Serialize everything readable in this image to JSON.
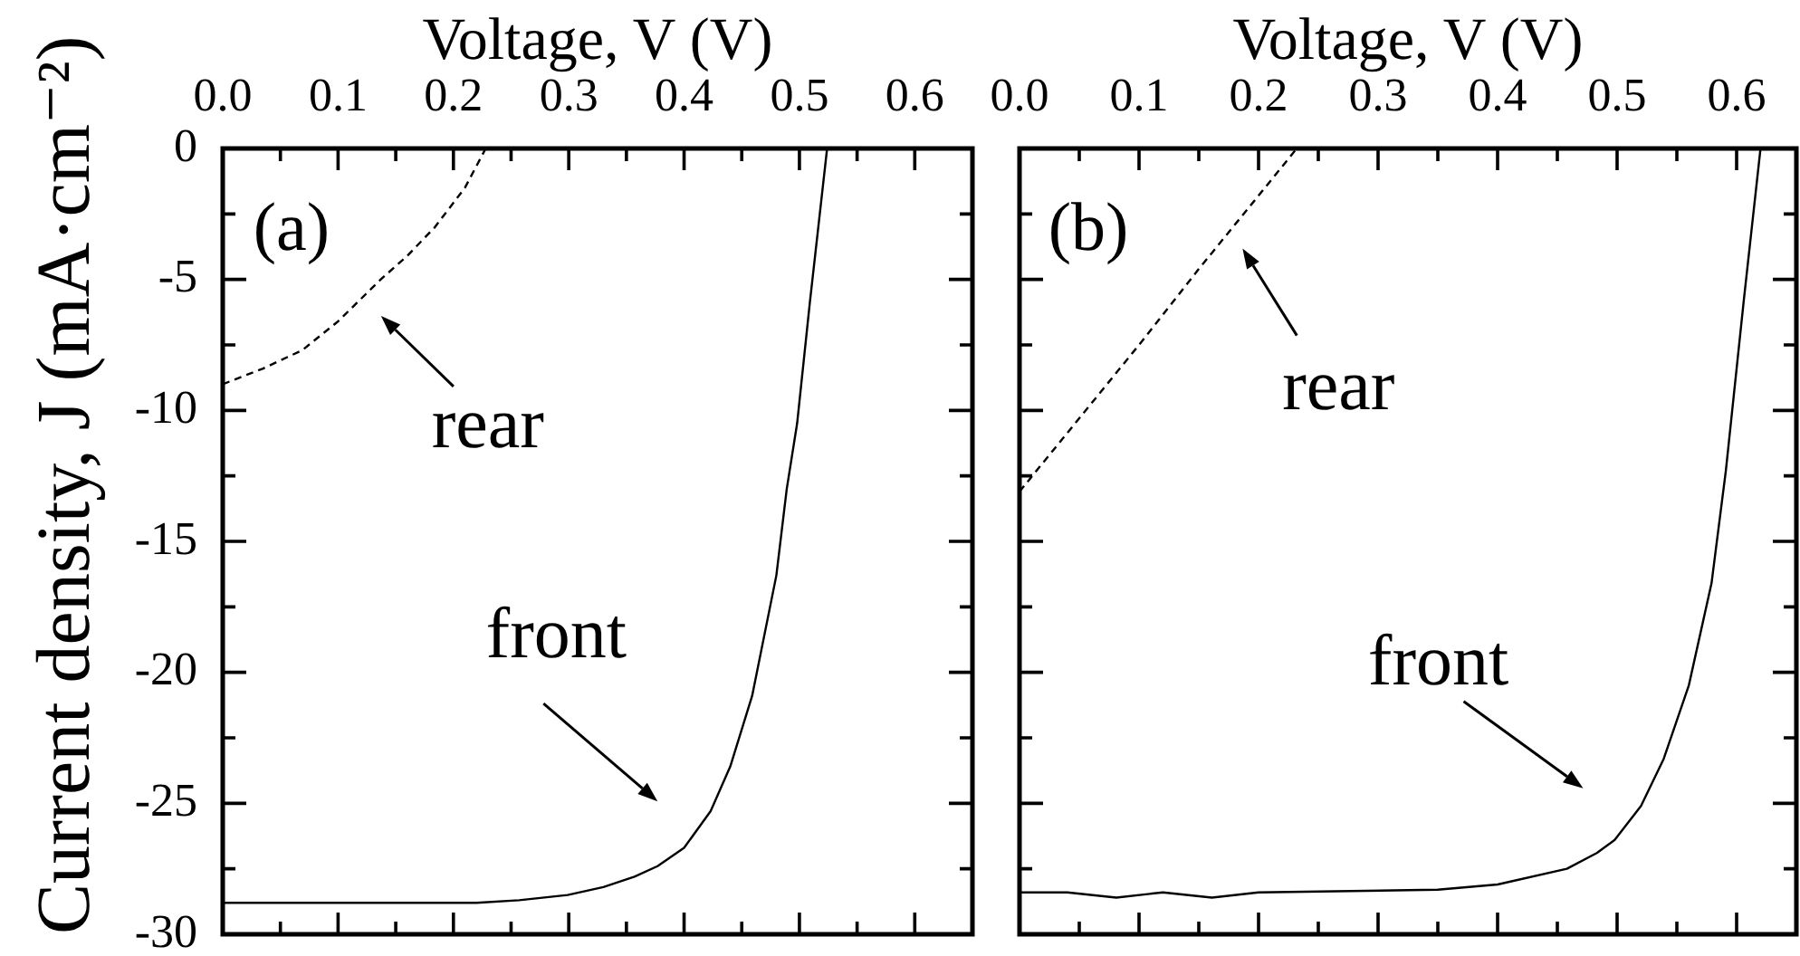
{
  "chart_data": [
    {
      "type": "line",
      "xlabel": "Voltage, V (V)",
      "ylabel": "Current density, J (mA·cm⁻²)",
      "annotations": [
        "(a)",
        {
          "text": "rear",
          "x": 0.12,
          "y": -5.7
        },
        {
          "text": "front",
          "x": 0.41,
          "y": -26.1
        }
      ],
      "xlim": [
        0,
        0.65
      ],
      "xticks": [
        {
          "value": 0,
          "label": "0.0"
        },
        {
          "value": 0.05,
          "label": null
        },
        {
          "value": 0.1,
          "label": "0.1"
        },
        {
          "value": 0.15,
          "label": null
        },
        {
          "value": 0.2,
          "label": "0.2"
        },
        {
          "value": 0.25,
          "label": null
        },
        {
          "value": 0.3,
          "label": "0.3"
        },
        {
          "value": 0.35,
          "label": null
        },
        {
          "value": 0.4,
          "label": "0.4"
        },
        {
          "value": 0.45,
          "label": null
        },
        {
          "value": 0.5,
          "label": "0.5"
        },
        {
          "value": 0.55,
          "label": null
        },
        {
          "value": 0.6,
          "label": "0.6"
        }
      ],
      "ylim": [
        -30,
        0
      ],
      "yticks": [
        0,
        {
          "value": -2.5,
          "label": null
        },
        -5,
        {
          "value": -7.5,
          "label": null
        },
        -10,
        {
          "value": -12.5,
          "label": null
        },
        -15,
        {
          "value": -17.5,
          "label": null
        },
        -20,
        {
          "value": -22.5,
          "label": null
        },
        -25,
        {
          "value": -27.5,
          "label": null
        },
        -30
      ],
      "series": [
        {
          "color": "#000000",
          "x": [
            0,
            0.1,
            0.2,
            0.22,
            0.257,
            0.299,
            0.33,
            0.357,
            0.377,
            0.4,
            0.423,
            0.44,
            0.459,
            0.48,
            0.489,
            0.498,
            0.509,
            0.524
          ],
          "values": [
            -28.8,
            -28.8,
            -28.8,
            -28.8,
            -28.7,
            -28.5,
            -28.2,
            -27.8,
            -27.4,
            -26.7,
            -25.3,
            -23.6,
            -20.9,
            -16.3,
            -13.0,
            -10.5,
            -5.9,
            0
          ]
        },
        {
          "color": "#000000",
          "line_style": "dashed",
          "x": [
            0,
            0.035,
            0.069,
            0.1,
            0.137,
            0.16,
            0.184,
            0.21,
            0.228
          ],
          "values": [
            -9.0,
            -8.4,
            -7.7,
            -6.6,
            -5.0,
            -4.1,
            -3.0,
            -1.5,
            0
          ]
        }
      ]
    },
    {
      "type": "line",
      "xlabel": "Voltage, V (V)",
      "tick_labels": "x",
      "annotations": [
        "(b)",
        {
          "text": "rear",
          "x": 0.176,
          "y": -3.2
        },
        {
          "text": "front",
          "x": 0.511,
          "y": -25.6
        }
      ],
      "xlim": [
        0,
        0.65
      ],
      "xticks": [
        {
          "value": 0,
          "label": "0.0"
        },
        {
          "value": 0.05,
          "label": null
        },
        {
          "value": 0.1,
          "label": "0.1"
        },
        {
          "value": 0.15,
          "label": null
        },
        {
          "value": 0.2,
          "label": "0.2"
        },
        {
          "value": 0.25,
          "label": null
        },
        {
          "value": 0.3,
          "label": "0.3"
        },
        {
          "value": 0.35,
          "label": null
        },
        {
          "value": 0.4,
          "label": "0.4"
        },
        {
          "value": 0.45,
          "label": null
        },
        {
          "value": 0.5,
          "label": "0.5"
        },
        {
          "value": 0.55,
          "label": null
        },
        {
          "value": 0.6,
          "label": "0.6"
        }
      ],
      "ylim": [
        -30,
        0
      ],
      "yticks": [
        0,
        {
          "value": -2.5,
          "label": null
        },
        -5,
        {
          "value": -7.5,
          "label": null
        },
        -10,
        {
          "value": -12.5,
          "label": null
        },
        -15,
        {
          "value": -17.5,
          "label": null
        },
        -20,
        {
          "value": -22.5,
          "label": null
        },
        -25,
        {
          "value": -27.5,
          "label": null
        },
        -30
      ],
      "series": [
        {
          "color": "#000000",
          "x": [
            0,
            0.04,
            0.081,
            0.12,
            0.161,
            0.2,
            0.35,
            0.4,
            0.458,
            0.483,
            0.498,
            0.52,
            0.539,
            0.56,
            0.579,
            0.591,
            0.606,
            0.62
          ],
          "values": [
            -28.4,
            -28.4,
            -28.6,
            -28.4,
            -28.6,
            -28.4,
            -28.3,
            -28.1,
            -27.5,
            -26.9,
            -26.4,
            -25.1,
            -23.3,
            -20.5,
            -16.6,
            -12.3,
            -5.8,
            0
          ]
        },
        {
          "color": "#000000",
          "line_style": "dashed",
          "x": [
            0,
            0.05,
            0.1,
            0.15,
            0.2,
            0.232
          ],
          "values": [
            -13.1,
            -10.3,
            -7.5,
            -4.6,
            -1.8,
            0
          ]
        }
      ]
    }
  ]
}
